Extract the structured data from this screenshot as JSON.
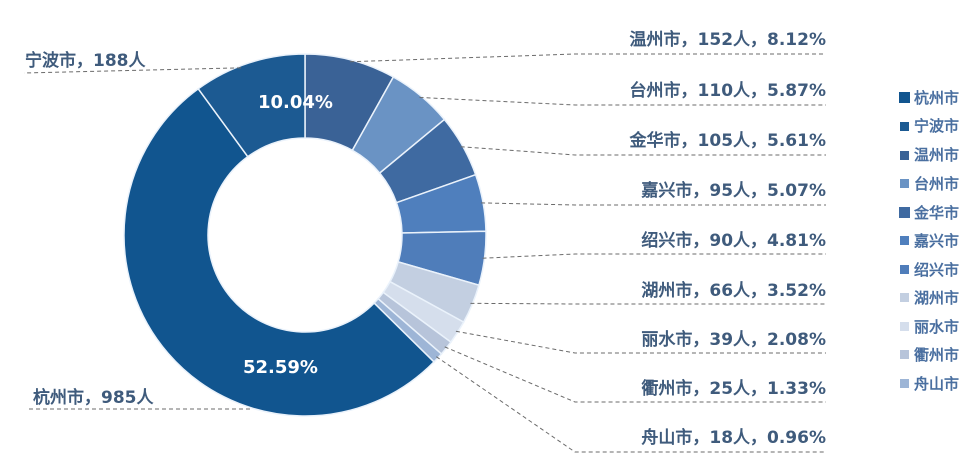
{
  "chart_data": {
    "type": "pie",
    "subtype": "donut",
    "title": "",
    "unit": "人",
    "center": [
      305,
      235
    ],
    "outer_radius": 181,
    "inner_radius": 97,
    "start_angle_deg": 0,
    "direction": "clockwise_from_top",
    "slices": [
      {
        "name": "温州市",
        "count": 152,
        "percent": 8.12,
        "color": "#3a6296"
      },
      {
        "name": "台州市",
        "count": 110,
        "percent": 5.87,
        "color": "#6a93c4"
      },
      {
        "name": "金华市",
        "count": 105,
        "percent": 5.61,
        "color": "#3f6aa1"
      },
      {
        "name": "嘉兴市",
        "count": 95,
        "percent": 5.07,
        "color": "#4f7fbd"
      },
      {
        "name": "绍兴市",
        "count": 90,
        "percent": 4.81,
        "color": "#4f7dba"
      },
      {
        "name": "湖州市",
        "count": 66,
        "percent": 3.52,
        "color": "#c3cfe1"
      },
      {
        "name": "丽水市",
        "count": 39,
        "percent": 2.08,
        "color": "#d5deec"
      },
      {
        "name": "衢州市",
        "count": 25,
        "percent": 1.33,
        "color": "#b7c4da"
      },
      {
        "name": "舟山市",
        "count": 18,
        "percent": 0.96,
        "color": "#9db5d6"
      },
      {
        "name": "杭州市",
        "count": 985,
        "percent": 52.59,
        "color": "#11558f"
      },
      {
        "name": "宁波市",
        "count": 188,
        "percent": 10.04,
        "color": "#1c5a92"
      }
    ],
    "legend": {
      "position": "right",
      "entries": [
        "杭州市",
        "宁波市",
        "温州市",
        "台州市",
        "金华市",
        "嘉兴市",
        "绍兴市",
        "湖州市",
        "丽水市",
        "衢州市",
        "舟山市"
      ],
      "colors": [
        "#11558f",
        "#1c5a92",
        "#3a6296",
        "#6a93c4",
        "#3f6aa1",
        "#4f7fbd",
        "#4f7dba",
        "#c3cfe1",
        "#d5deec",
        "#b7c4da",
        "#9db5d6"
      ]
    },
    "inner_labels": [
      {
        "name": "杭州市",
        "text": "52.59%"
      },
      {
        "name": "宁波市",
        "text": "10.04%"
      }
    ]
  },
  "labels": {
    "left": [
      {
        "name": "宁波市",
        "text": "宁波市，188人"
      },
      {
        "name": "杭州市",
        "text": "杭州市，985人"
      }
    ],
    "right": [
      {
        "name": "温州市",
        "text": "温州市，152人，8.12%"
      },
      {
        "name": "台州市",
        "text": "台州市，110人，5.87%"
      },
      {
        "name": "金华市",
        "text": "金华市，105人，5.61%"
      },
      {
        "name": "嘉兴市",
        "text": "嘉兴市，95人，5.07%"
      },
      {
        "name": "绍兴市",
        "text": "绍兴市，90人，4.81%"
      },
      {
        "name": "湖州市",
        "text": "湖州市，66人，3.52%"
      },
      {
        "name": "丽水市",
        "text": "丽水市，39人，2.08%"
      },
      {
        "name": "衢州市",
        "text": "衢州市，25人，1.33%"
      },
      {
        "name": "舟山市",
        "text": "舟山市，18人，0.96%"
      }
    ]
  },
  "colors": {
    "label_text": "#3f5b7c",
    "legend_text": "#4a6fa0",
    "leader_line": "#6b6b6b",
    "slice_separator": "#eaf2fb"
  }
}
